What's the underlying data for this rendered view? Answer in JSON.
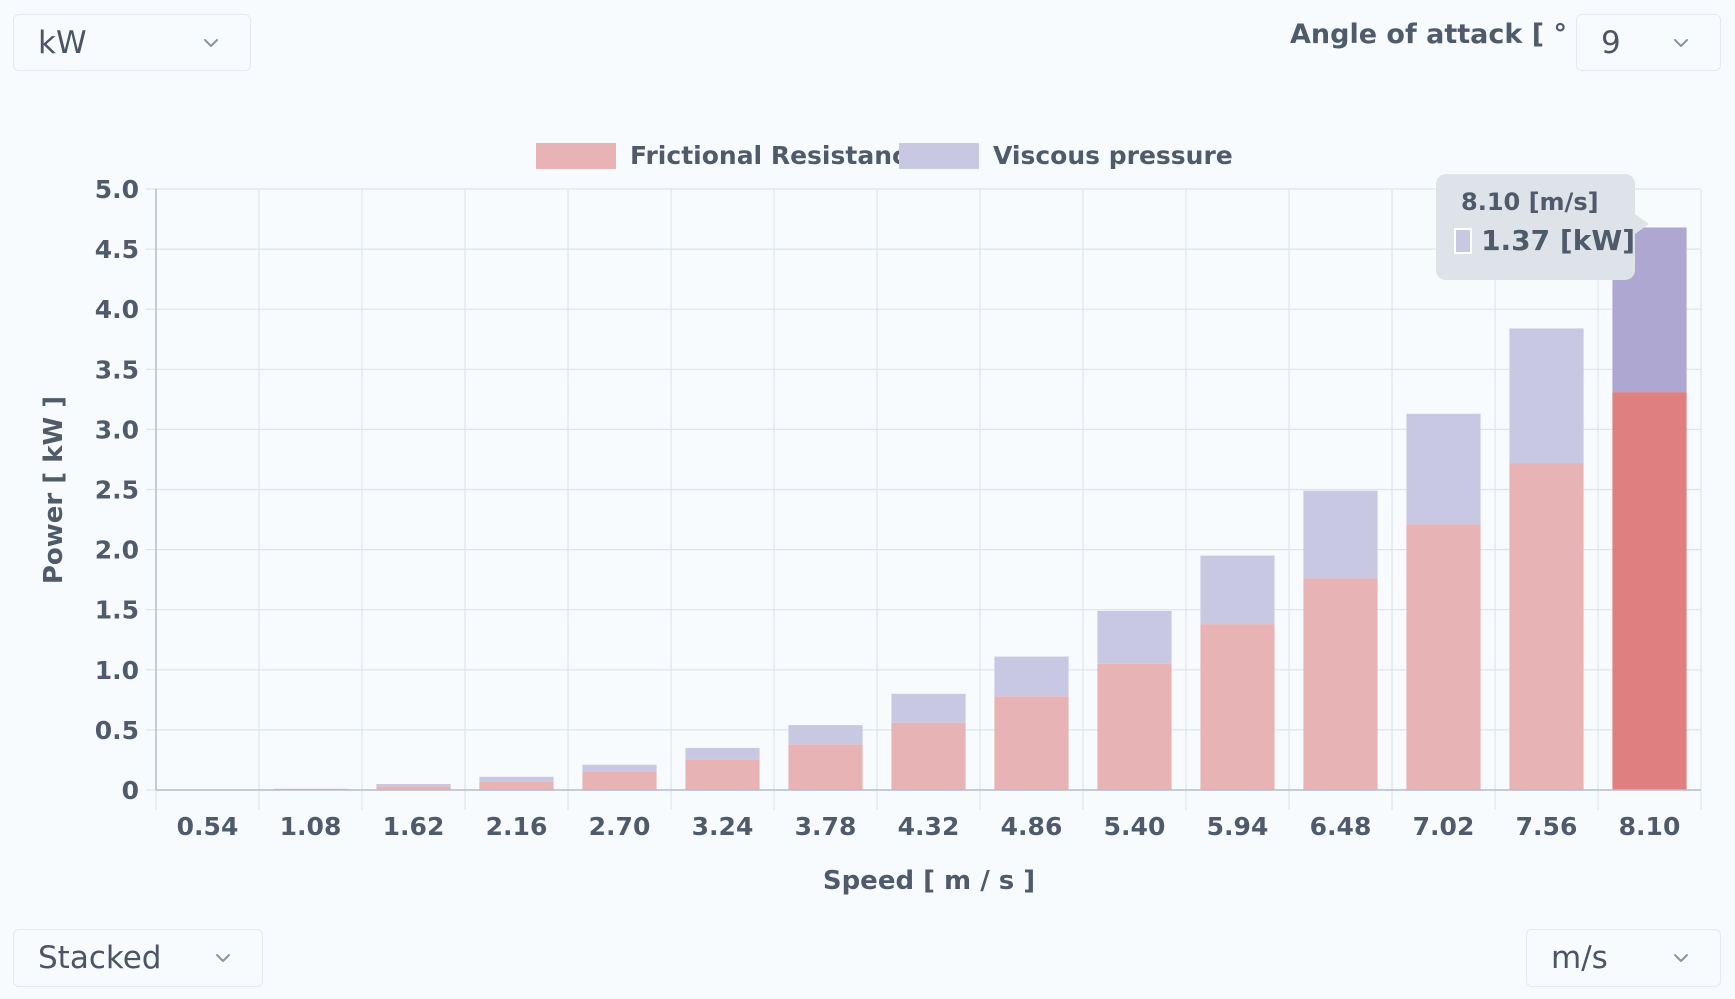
{
  "controls": {
    "unit_select": "kW",
    "angle_label": "Angle of attack [ ° ]",
    "angle_select": "9",
    "mode_select": "Stacked",
    "speed_unit_select": "m/s"
  },
  "tooltip": {
    "title": "8.10 [m/s]",
    "value": "1.37 [kW]",
    "swatch_color": "#c9c8e3"
  },
  "colors": {
    "frictional": "#e8b3b4",
    "viscous": "#c9c8e3",
    "frictional_active": "#df7f80",
    "viscous_active": "#ada7d1",
    "grid": "#dfe4ea",
    "axis": "#b5bdc7",
    "text": "#4f5a6b"
  },
  "chart_data": {
    "type": "bar",
    "stacked": true,
    "categories": [
      "0.54",
      "1.08",
      "1.62",
      "2.16",
      "2.70",
      "3.24",
      "3.78",
      "4.32",
      "4.86",
      "5.40",
      "5.94",
      "6.48",
      "7.02",
      "7.56",
      "8.10"
    ],
    "series": [
      {
        "name": "Frictional Resistance",
        "color": "#e8b3b4",
        "values": [
          0.0,
          0.01,
          0.03,
          0.07,
          0.15,
          0.25,
          0.38,
          0.56,
          0.78,
          1.05,
          1.38,
          1.76,
          2.21,
          2.72,
          3.31
        ]
      },
      {
        "name": "Viscous pressure",
        "color": "#c9c8e3",
        "values": [
          0.0,
          0.0,
          0.02,
          0.04,
          0.06,
          0.1,
          0.16,
          0.24,
          0.33,
          0.44,
          0.57,
          0.73,
          0.92,
          1.12,
          1.37
        ]
      }
    ],
    "highlighted_category": "8.10",
    "xlabel": "Speed [ m / s ]",
    "ylabel": "Power [ kW ]",
    "ylim": [
      0,
      5.0
    ],
    "yticks": [
      0,
      0.5,
      1.0,
      1.5,
      2.0,
      2.5,
      3.0,
      3.5,
      4.0,
      4.5,
      5.0
    ],
    "ytick_labels": [
      "0",
      "0.5",
      "1.0",
      "1.5",
      "2.0",
      "2.5",
      "3.0",
      "3.5",
      "4.0",
      "4.5",
      "5.0"
    ],
    "grid": true,
    "legend_position": "top-center"
  }
}
